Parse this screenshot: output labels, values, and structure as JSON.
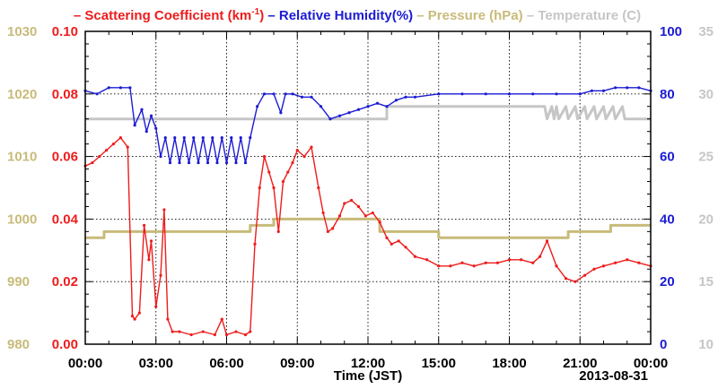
{
  "chart_data": {
    "type": "line",
    "xlabel": "Time (JST)",
    "date_label": "2013-08-31",
    "x_ticks": [
      "00:00",
      "03:00",
      "06:00",
      "09:00",
      "12:00",
      "15:00",
      "18:00",
      "21:00",
      "00:00"
    ],
    "xlim_hours": [
      0,
      24
    ],
    "grid": true,
    "legend": [
      {
        "name": "Scattering Coefficient (km",
        "sup": "-1",
        "suffix": ")",
        "color": "#ee1c1c"
      },
      {
        "name": "Relative Humidity(%)",
        "color": "#1c1cd4"
      },
      {
        "name": "Pressure (hPa)",
        "color": "#c8bb7a"
      },
      {
        "name": "Temperature (C)",
        "color": "#c6c6c6"
      }
    ],
    "axes": {
      "scattering": {
        "ylim": [
          0.0,
          0.1
        ],
        "ticks": [
          "0.00",
          "0.02",
          "0.04",
          "0.06",
          "0.08",
          "0.10"
        ],
        "color": "#ee1c1c"
      },
      "pressure": {
        "ylim": [
          980,
          1030
        ],
        "ticks": [
          "980",
          "990",
          "1000",
          "1010",
          "1020",
          "1030"
        ],
        "color": "#c8bb7a"
      },
      "humidity": {
        "ylim": [
          0,
          100
        ],
        "ticks": [
          "0",
          "20",
          "40",
          "60",
          "80",
          "100"
        ],
        "color": "#1c1cd4"
      },
      "temperature": {
        "ylim": [
          10,
          35
        ],
        "ticks": [
          "10",
          "15",
          "20",
          "25",
          "30",
          "35"
        ],
        "color": "#c6c6c6"
      }
    },
    "series": [
      {
        "name": "Scattering Coefficient",
        "axis": "scattering",
        "x": [
          0,
          0.3,
          0.6,
          0.9,
          1.2,
          1.5,
          1.8,
          2.0,
          2.1,
          2.3,
          2.5,
          2.7,
          2.8,
          3.0,
          3.2,
          3.35,
          3.5,
          3.7,
          4.0,
          4.5,
          5.0,
          5.5,
          5.8,
          6.0,
          6.4,
          6.8,
          7.0,
          7.2,
          7.4,
          7.6,
          7.8,
          8.0,
          8.2,
          8.4,
          8.6,
          8.8,
          9.0,
          9.3,
          9.6,
          9.9,
          10.1,
          10.3,
          10.5,
          10.8,
          11.0,
          11.3,
          11.6,
          11.9,
          12.2,
          12.5,
          12.8,
          13.0,
          13.3,
          13.6,
          14.0,
          14.5,
          15.0,
          15.5,
          16.0,
          16.5,
          17.0,
          17.5,
          18.0,
          18.5,
          19.0,
          19.3,
          19.6,
          20.0,
          20.4,
          20.8,
          21.2,
          21.6,
          22.0,
          22.5,
          23.0,
          23.5,
          24.0
        ],
        "values": [
          0.057,
          0.058,
          0.06,
          0.062,
          0.064,
          0.066,
          0.063,
          0.009,
          0.008,
          0.01,
          0.038,
          0.027,
          0.033,
          0.012,
          0.022,
          0.043,
          0.008,
          0.004,
          0.004,
          0.003,
          0.004,
          0.003,
          0.008,
          0.003,
          0.004,
          0.003,
          0.004,
          0.032,
          0.05,
          0.06,
          0.055,
          0.05,
          0.036,
          0.052,
          0.055,
          0.058,
          0.062,
          0.06,
          0.063,
          0.05,
          0.042,
          0.036,
          0.037,
          0.041,
          0.045,
          0.046,
          0.044,
          0.041,
          0.042,
          0.039,
          0.034,
          0.032,
          0.033,
          0.031,
          0.028,
          0.027,
          0.025,
          0.025,
          0.026,
          0.025,
          0.026,
          0.026,
          0.027,
          0.027,
          0.026,
          0.028,
          0.033,
          0.025,
          0.021,
          0.02,
          0.022,
          0.024,
          0.025,
          0.026,
          0.027,
          0.026,
          0.025
        ]
      },
      {
        "name": "Relative Humidity",
        "axis": "humidity",
        "x": [
          0,
          0.5,
          1.0,
          1.5,
          1.9,
          2.1,
          2.4,
          2.6,
          2.8,
          3.0,
          3.2,
          3.4,
          3.6,
          3.8,
          4.0,
          4.2,
          4.4,
          4.6,
          4.8,
          5.0,
          5.2,
          5.4,
          5.6,
          5.8,
          6.0,
          6.2,
          6.4,
          6.6,
          6.8,
          7.0,
          7.3,
          7.6,
          8.0,
          8.3,
          8.5,
          8.8,
          9.2,
          9.6,
          10.0,
          10.4,
          10.8,
          11.2,
          11.6,
          12.0,
          12.4,
          12.8,
          13.2,
          13.6,
          14.0,
          15.0,
          16.0,
          17.0,
          18.0,
          19.0,
          20.0,
          21.0,
          21.5,
          22.0,
          22.5,
          23.0,
          23.5,
          24.0
        ],
        "values": [
          81,
          80,
          82,
          82,
          82,
          70,
          75,
          68,
          73,
          69,
          60,
          66,
          58,
          66,
          58,
          66,
          58,
          66,
          58,
          66,
          58,
          66,
          58,
          66,
          58,
          66,
          58,
          66,
          58,
          66,
          76,
          80,
          80,
          74,
          80,
          80,
          79,
          79,
          76,
          72,
          73,
          74,
          75,
          76,
          77,
          76,
          78,
          79,
          79,
          80,
          80,
          80,
          80,
          80,
          80,
          80,
          81,
          81,
          82,
          82,
          82,
          81
        ]
      },
      {
        "name": "Pressure",
        "axis": "pressure",
        "x": [
          0,
          0.8,
          0.8,
          7.0,
          7.0,
          8.0,
          8.0,
          12.5,
          12.5,
          15.0,
          15.0,
          20.5,
          20.5,
          22.3,
          22.3,
          24.0
        ],
        "values": [
          997,
          997,
          998,
          998,
          999,
          999,
          1000,
          1000,
          998,
          998,
          997,
          997,
          998,
          998,
          999,
          999
        ]
      },
      {
        "name": "Temperature",
        "axis": "temperature",
        "x": [
          0,
          12.8,
          12.8,
          19.5,
          19.6,
          19.8,
          19.9,
          20.0,
          20.1,
          20.4,
          20.5,
          20.8,
          20.9,
          21.2,
          21.3,
          21.6,
          21.7,
          22.0,
          22.1,
          22.4,
          22.5,
          22.8,
          22.9,
          24.0
        ],
        "values": [
          28,
          28,
          29,
          29,
          28,
          29,
          28,
          29,
          28,
          29,
          28,
          29,
          28,
          29,
          28,
          29,
          28,
          29,
          28,
          29,
          28,
          29,
          28,
          28
        ]
      }
    ]
  }
}
